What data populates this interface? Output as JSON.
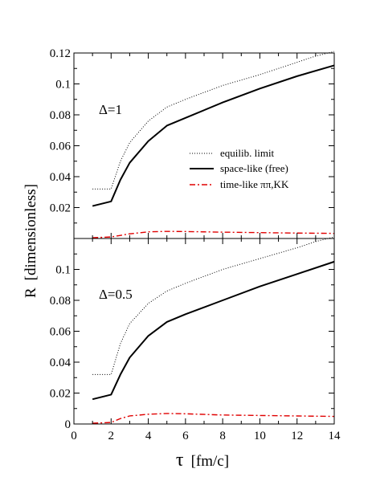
{
  "chart_data": {
    "type": "line",
    "x_range": [
      0,
      14
    ],
    "x_ticks": [
      0,
      2,
      4,
      6,
      8,
      10,
      12,
      14
    ],
    "xlabel_symbol": "τ",
    "xlabel_units": "[fm/c]",
    "ylabel_symbol": "R",
    "ylabel_units": "[dimensionless]",
    "legend": {
      "position": "right-middle of top panel",
      "entries": [
        "equilib. limit",
        "space-like (free)",
        "time-like ππ,KK"
      ]
    },
    "series_styles": [
      {
        "name": "equilib. limit",
        "color": "#000000",
        "dash": "1,2",
        "width": 1
      },
      {
        "name": "space-like (free)",
        "color": "#000000",
        "dash": "",
        "width": 2
      },
      {
        "name": "time-like ππ,KK",
        "color": "#e00000",
        "dash": "7,3,2,3",
        "width": 1.4
      }
    ],
    "panels": [
      {
        "label": "Δ=1",
        "ylim": [
          0,
          0.12
        ],
        "y_ticks": [
          0.02,
          0.04,
          0.06,
          0.08,
          0.1,
          0.12
        ],
        "y_tick_labels": [
          "0.02",
          "0.04",
          "0.06",
          "0.08",
          "0.1",
          "0.12"
        ],
        "series": [
          {
            "name": "equilib. limit",
            "x": [
              1,
              2,
              2.5,
              3,
              4,
              5,
              6,
              8,
              10,
              12,
              13,
              14
            ],
            "y": [
              0.032,
              0.032,
              0.05,
              0.062,
              0.076,
              0.085,
              0.09,
              0.099,
              0.106,
              0.114,
              0.118,
              0.121
            ]
          },
          {
            "name": "space-like (free)",
            "x": [
              1,
              2,
              2.5,
              3,
              4,
              5,
              6,
              8,
              10,
              12,
              14
            ],
            "y": [
              0.021,
              0.024,
              0.038,
              0.049,
              0.063,
              0.073,
              0.078,
              0.088,
              0.097,
              0.105,
              0.112
            ]
          },
          {
            "name": "time-like ππ,KK",
            "x": [
              1,
              2,
              2.5,
              3,
              4,
              5,
              6,
              8,
              10,
              12,
              14
            ],
            "y": [
              0.0005,
              0.001,
              0.002,
              0.003,
              0.0043,
              0.0046,
              0.0045,
              0.0041,
              0.0038,
              0.0035,
              0.0033
            ]
          }
        ]
      },
      {
        "label": "Δ=0.5",
        "ylim": [
          0,
          0.12
        ],
        "y_ticks": [
          0,
          0.02,
          0.04,
          0.06,
          0.08,
          0.1
        ],
        "y_tick_labels": [
          "0",
          "0.02",
          "0.04",
          "0.06",
          "0.08",
          "0.1"
        ],
        "series": [
          {
            "name": "equilib. limit",
            "x": [
              1,
              2,
              2.5,
              3,
              4,
              5,
              6,
              8,
              10,
              12,
              13,
              14
            ],
            "y": [
              0.032,
              0.032,
              0.052,
              0.065,
              0.078,
              0.086,
              0.091,
              0.1,
              0.107,
              0.114,
              0.118,
              0.121
            ]
          },
          {
            "name": "space-like (free)",
            "x": [
              1,
              2,
              2.5,
              3,
              4,
              5,
              6,
              8,
              10,
              12,
              14
            ],
            "y": [
              0.016,
              0.019,
              0.032,
              0.043,
              0.057,
              0.066,
              0.071,
              0.08,
              0.089,
              0.097,
              0.105
            ]
          },
          {
            "name": "time-like ππ,KK",
            "x": [
              1,
              2,
              2.5,
              3,
              4,
              5,
              6,
              8,
              10,
              12,
              14
            ],
            "y": [
              0.0005,
              0.001,
              0.0035,
              0.0052,
              0.0063,
              0.0068,
              0.0066,
              0.0058,
              0.0055,
              0.0052,
              0.0049
            ]
          }
        ]
      }
    ]
  }
}
